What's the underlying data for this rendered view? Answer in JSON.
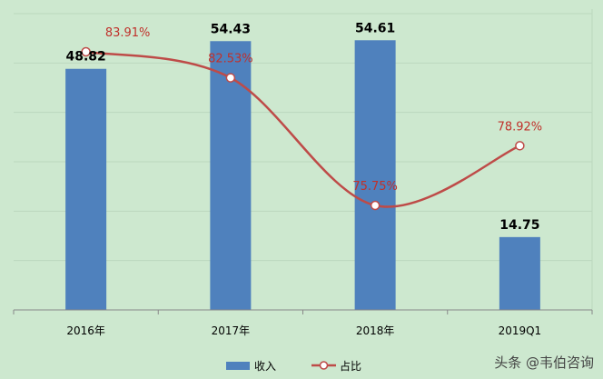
{
  "chart_data": {
    "type": "bar",
    "categories": [
      "2016年",
      "2017年",
      "2018年",
      "2019Q1"
    ],
    "series": [
      {
        "name": "收入",
        "type": "bar",
        "color": "#4f81bd",
        "values": [
          48.82,
          54.43,
          54.61,
          14.75
        ],
        "labels": [
          "48.82",
          "54.43",
          "54.61",
          "14.75"
        ]
      },
      {
        "name": "占比",
        "type": "line",
        "color": "#be4b48",
        "values": [
          83.91,
          82.53,
          75.75,
          78.92
        ],
        "labels": [
          "83.91%",
          "82.53%",
          "75.75%",
          "78.92%"
        ]
      }
    ],
    "ylim_bar": [
      0,
      60
    ],
    "ylim_line": [
      74,
      84
    ],
    "grid": true,
    "legend": "bottom-center"
  },
  "watermark": "头条 @韦伯咨询"
}
